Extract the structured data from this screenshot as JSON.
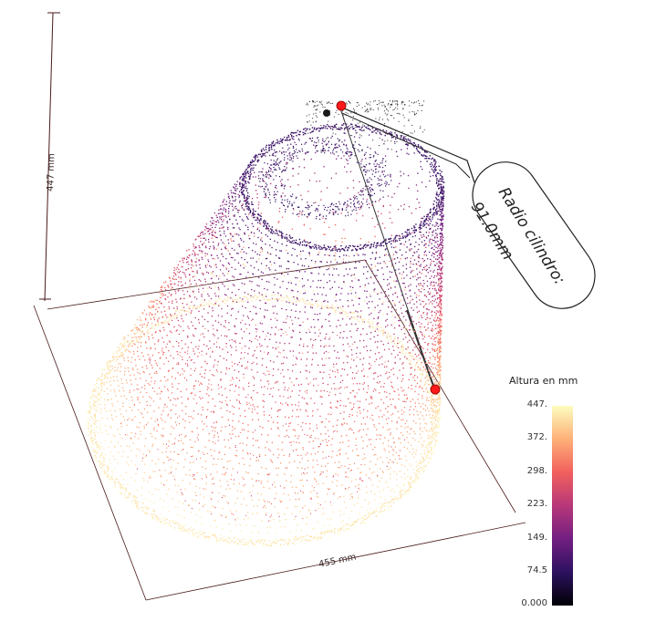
{
  "dimensions": {
    "height_label": "447 mm",
    "width_label": "455 mm"
  },
  "callout": {
    "line1": "Radio cilindro:",
    "line2": "91.0mm"
  },
  "colorbar": {
    "title": "Altura en mm",
    "ticks": [
      "447.",
      "372.",
      "298.",
      "223.",
      "149.",
      "74.5",
      "0.000"
    ],
    "gradient_stops": [
      "#000004",
      "#2c115f",
      "#721f81",
      "#b73779",
      "#f1605d",
      "#feb078",
      "#fcfdbf"
    ]
  },
  "markers": {
    "color": "#ff1a1a"
  }
}
